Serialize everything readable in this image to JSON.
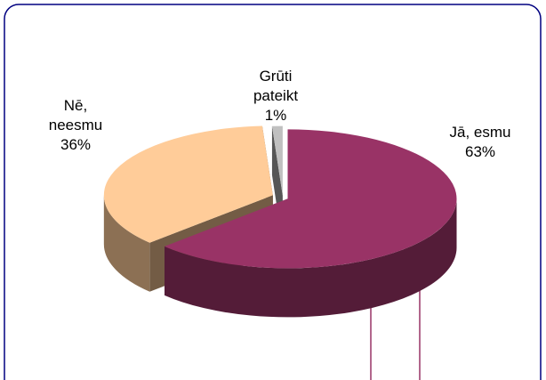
{
  "chart_data": {
    "type": "pie",
    "categories": [
      "Jā, esmu",
      "Nē, neesmu",
      "Grūti pateikt"
    ],
    "values": [
      63,
      36,
      1
    ],
    "value_labels": [
      "63%",
      "36%",
      "1%"
    ],
    "colors": [
      "#993366",
      "#ffcc99",
      "#c0c0c0"
    ]
  }
}
